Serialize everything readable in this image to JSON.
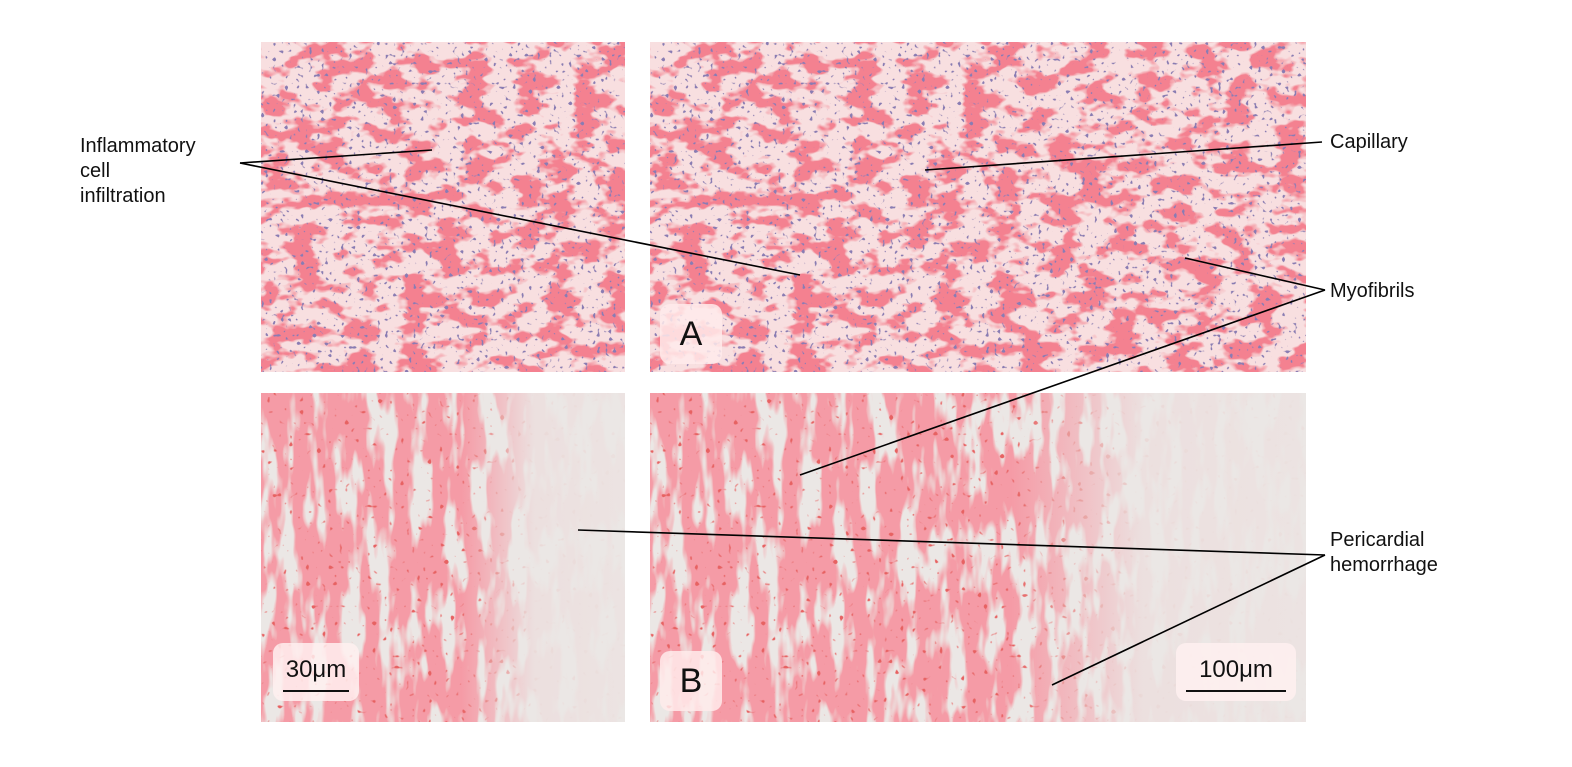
{
  "figure": {
    "annotations": {
      "inflammatory": "Inflammatory\ncell\ninfiltration",
      "capillary": "Capillary",
      "myofibrils": "Myofibrils",
      "pericardial": "Pericardial\nhemorrhage"
    },
    "panel_labels": {
      "a": "A",
      "b": "B"
    },
    "scale_bars": {
      "left": "30μm",
      "right": "100μm"
    },
    "colors": {
      "tissue": "#e8414f",
      "background_a": "#f7d4d6",
      "background_b": "#ece8e6",
      "nuclei": "#3d3370"
    }
  }
}
